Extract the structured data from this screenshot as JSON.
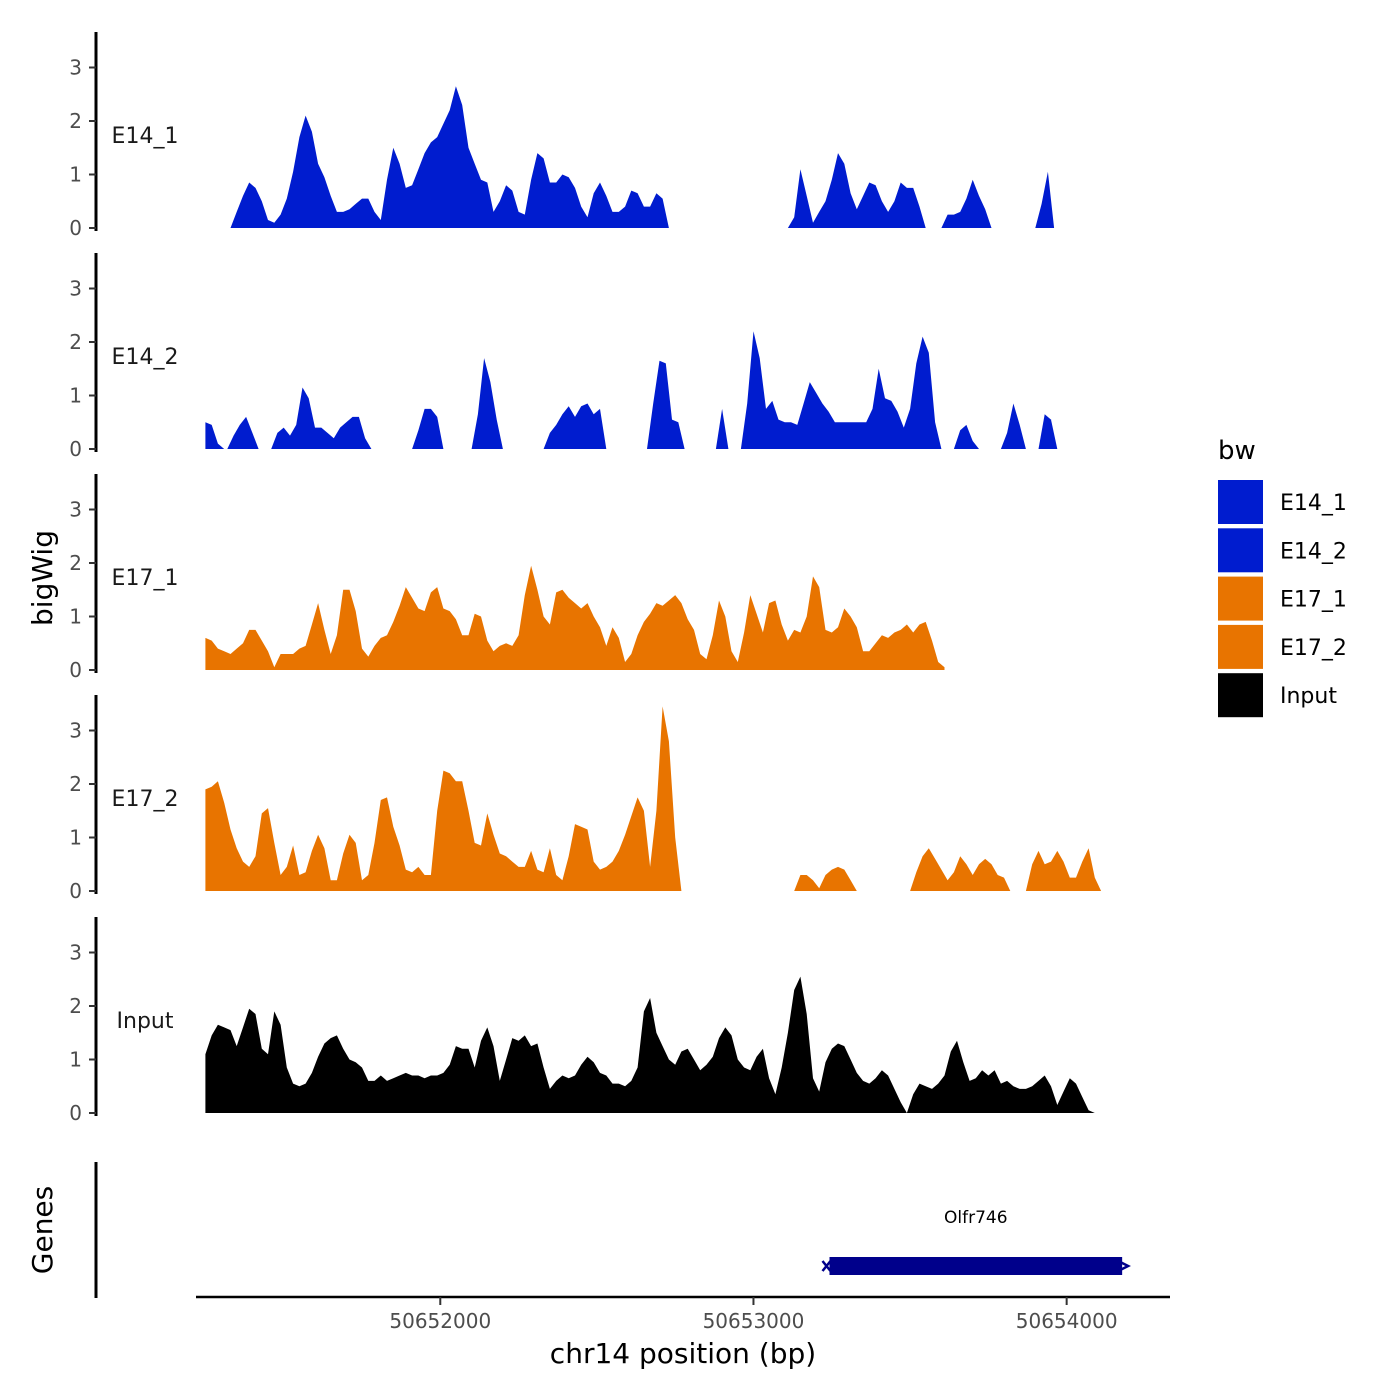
{
  "chart_data": {
    "type": "area",
    "title": "",
    "xlabel": "chr14 position (bp)",
    "ylabel": "bigWig",
    "genes_label": "Genes",
    "xlim": [
      50651220,
      50654330
    ],
    "ylim": [
      0,
      3.6
    ],
    "x_ticks": [
      50652000,
      50653000,
      50654000
    ],
    "x_tick_labels": [
      "50652000",
      "50653000",
      "50654000"
    ],
    "y_ticks": [
      0,
      1,
      2,
      3
    ],
    "y_tick_labels": [
      "0",
      "1",
      "2",
      "3"
    ],
    "x_start": 50651250,
    "x_step": 20,
    "legend": {
      "title": "bw",
      "entries": [
        {
          "label": "E14_1",
          "color": "#001ccf"
        },
        {
          "label": "E14_2",
          "color": "#001ccf"
        },
        {
          "label": "E17_1",
          "color": "#e87400"
        },
        {
          "label": "E17_2",
          "color": "#e87400"
        },
        {
          "label": "Input",
          "color": "#000000"
        }
      ]
    },
    "series": [
      {
        "name": "E14_1",
        "color": "#001ccf",
        "segments": [
          {
            "start": 50651250,
            "values": [
              0.05
            ]
          },
          {
            "start": 50651330,
            "values": [
              0.0,
              0.3,
              0.6,
              0.85,
              0.75,
              0.5,
              0.15,
              0.1,
              0.25,
              0.55,
              1.05,
              1.7,
              2.1,
              1.8,
              1.2,
              0.95,
              0.6,
              0.3,
              0.3,
              0.35,
              0.45,
              0.55,
              0.55,
              0.3,
              0.15,
              0.9,
              1.5,
              1.2,
              0.75,
              0.8,
              1.1,
              1.4,
              1.6,
              1.7,
              1.95,
              2.2,
              2.65,
              2.3,
              1.5,
              1.2,
              0.9,
              0.85,
              0.3,
              0.5,
              0.8,
              0.7,
              0.3,
              0.25,
              0.9,
              1.4,
              1.3,
              0.85,
              0.85,
              1.0,
              0.95,
              0.75,
              0.4,
              0.2,
              0.65,
              0.85,
              0.6,
              0.3,
              0.3,
              0.4,
              0.7,
              0.65,
              0.4,
              0.4,
              0.65,
              0.55,
              0.0
            ]
          },
          {
            "start": 50653110,
            "values": [
              0.0,
              0.2,
              1.1,
              0.6,
              0.1,
              0.3,
              0.5,
              0.9,
              1.4,
              1.2,
              0.65,
              0.35,
              0.6,
              0.85,
              0.8,
              0.5,
              0.3,
              0.5,
              0.85,
              0.75,
              0.75,
              0.4,
              0.0
            ]
          },
          {
            "start": 50653600,
            "values": [
              0.0,
              0.25,
              0.25,
              0.3,
              0.55,
              0.9,
              0.6,
              0.35,
              0.0
            ]
          },
          {
            "start": 50653900,
            "values": [
              0.0,
              0.45,
              1.05,
              0.0
            ]
          }
        ]
      },
      {
        "name": "E14_2",
        "color": "#001ccf",
        "segments": [
          {
            "start": 50651250,
            "values": [
              0.5,
              0.45,
              0.1,
              0.0
            ]
          },
          {
            "start": 50651320,
            "values": [
              0.0,
              0.25,
              0.45,
              0.6,
              0.3,
              0.0
            ]
          },
          {
            "start": 50651460,
            "values": [
              0.0,
              0.3,
              0.4,
              0.25,
              0.45,
              1.15,
              0.95,
              0.4,
              0.4,
              0.3,
              0.2,
              0.4,
              0.5,
              0.6,
              0.6,
              0.2,
              0.0
            ]
          },
          {
            "start": 50651910,
            "values": [
              0.0,
              0.35,
              0.75,
              0.75,
              0.6,
              0.0
            ]
          },
          {
            "start": 50652100,
            "values": [
              0.0,
              0.65,
              1.7,
              1.25,
              0.55,
              0.0
            ]
          },
          {
            "start": 50652330,
            "values": [
              0.0,
              0.3,
              0.45,
              0.65,
              0.8,
              0.6,
              0.8,
              0.85,
              0.65,
              0.75,
              0.0
            ]
          },
          {
            "start": 50652660,
            "values": [
              0.0,
              0.85,
              1.65,
              1.6,
              0.55,
              0.5,
              0.0
            ]
          },
          {
            "start": 50652880,
            "values": [
              0.0,
              0.75,
              0.0
            ]
          },
          {
            "start": 50652960,
            "values": [
              0.0,
              0.85,
              2.2,
              1.7,
              0.75,
              0.9,
              0.55,
              0.5,
              0.5,
              0.45,
              0.85,
              1.25,
              1.05,
              0.85,
              0.7,
              0.5,
              0.5,
              0.5,
              0.5,
              0.5,
              0.5,
              0.75,
              1.5,
              0.95,
              0.9,
              0.7,
              0.4,
              0.75,
              1.6,
              2.1,
              1.8,
              0.5,
              0.0
            ]
          },
          {
            "start": 50653640,
            "values": [
              0.0,
              0.35,
              0.45,
              0.15,
              0.0
            ]
          },
          {
            "start": 50653790,
            "values": [
              0.0,
              0.3,
              0.85,
              0.45,
              0.0
            ]
          },
          {
            "start": 50653910,
            "values": [
              0.0,
              0.65,
              0.55,
              0.0
            ]
          }
        ]
      },
      {
        "name": "E17_1",
        "color": "#e87400",
        "segments": [
          {
            "start": 50651250,
            "values": [
              0.6,
              0.55,
              0.4,
              0.35,
              0.3,
              0.4,
              0.5,
              0.75,
              0.75,
              0.55,
              0.35,
              0.05,
              0.3,
              0.3,
              0.3,
              0.4,
              0.45,
              0.85,
              1.25,
              0.75,
              0.3,
              0.65,
              1.5,
              1.5,
              1.1,
              0.4,
              0.25,
              0.45,
              0.6,
              0.65,
              0.9,
              1.2,
              1.55,
              1.35,
              1.15,
              1.1,
              1.45,
              1.55,
              1.15,
              1.1,
              0.95,
              0.65,
              0.65,
              1.05,
              1.0,
              0.55,
              0.35,
              0.45,
              0.5,
              0.45,
              0.65,
              1.4,
              1.95,
              1.5,
              1.0,
              0.85,
              1.45,
              1.5,
              1.35,
              1.25,
              1.15,
              1.25,
              1.0,
              0.8,
              0.45,
              0.8,
              0.6,
              0.15,
              0.3,
              0.65,
              0.9,
              1.05,
              1.25,
              1.2,
              1.3,
              1.4,
              1.25,
              0.95,
              0.75,
              0.3,
              0.2,
              0.65,
              1.3,
              1.0,
              0.35,
              0.15,
              0.7,
              1.4,
              1.05,
              0.7,
              1.25,
              1.3,
              0.85,
              0.55,
              0.75,
              0.7,
              1.0,
              1.75,
              1.55,
              0.75,
              0.7,
              0.8,
              1.15,
              1.0,
              0.8,
              0.35,
              0.35,
              0.5,
              0.65,
              0.6,
              0.7,
              0.75,
              0.85,
              0.7,
              0.85,
              0.9,
              0.55,
              0.15,
              0.05
            ]
          }
        ]
      },
      {
        "name": "E17_2",
        "color": "#e87400",
        "segments": [
          {
            "start": 50651250,
            "values": [
              1.9,
              1.95,
              2.05,
              1.65,
              1.15,
              0.8,
              0.55,
              0.45,
              0.65,
              1.45,
              1.55,
              0.9,
              0.3,
              0.45,
              0.85,
              0.3,
              0.35,
              0.75,
              1.05,
              0.8,
              0.2,
              0.2,
              0.7,
              1.05,
              0.9,
              0.2,
              0.3,
              0.9,
              1.7,
              1.75,
              1.2,
              0.85,
              0.4,
              0.35,
              0.45,
              0.3,
              0.3,
              1.5,
              2.25,
              2.2,
              2.05,
              2.05,
              1.5,
              0.9,
              0.85,
              1.45,
              1.05,
              0.7,
              0.65,
              0.55,
              0.45,
              0.45,
              0.75,
              0.4,
              0.35,
              0.8,
              0.3,
              0.2,
              0.65,
              1.25,
              1.2,
              1.15,
              0.55,
              0.4,
              0.45,
              0.55,
              0.75,
              1.05,
              1.4,
              1.75,
              1.5,
              0.45,
              1.5,
              3.45,
              2.8,
              1.0,
              0.0
            ]
          },
          {
            "start": 50653130,
            "values": [
              0.0,
              0.3,
              0.3,
              0.2,
              0.05,
              0.3,
              0.4,
              0.45,
              0.4,
              0.2,
              0.0
            ]
          },
          {
            "start": 50653500,
            "values": [
              0.0,
              0.35,
              0.65,
              0.8,
              0.6,
              0.4,
              0.2,
              0.35,
              0.65,
              0.5,
              0.3,
              0.5,
              0.6,
              0.5,
              0.3,
              0.25,
              0.0
            ]
          },
          {
            "start": 50653870,
            "values": [
              0.0,
              0.5,
              0.75,
              0.5,
              0.55,
              0.75,
              0.55,
              0.25,
              0.25,
              0.55,
              0.8,
              0.25,
              0.0
            ]
          }
        ]
      },
      {
        "name": "Input",
        "color": "#000000",
        "segments": [
          {
            "start": 50651250,
            "values": [
              1.1,
              1.45,
              1.65,
              1.6,
              1.55,
              1.25,
              1.6,
              1.95,
              1.85,
              1.2,
              1.1,
              1.9,
              1.65,
              0.85,
              0.55,
              0.5,
              0.55,
              0.75,
              1.05,
              1.3,
              1.4,
              1.45,
              1.2,
              1.0,
              0.95,
              0.85,
              0.6,
              0.6,
              0.7,
              0.6,
              0.65,
              0.7,
              0.75,
              0.7,
              0.7,
              0.65,
              0.7,
              0.7,
              0.75,
              0.9,
              1.25,
              1.2,
              1.2,
              0.85,
              1.35,
              1.6,
              1.25,
              0.6,
              1.0,
              1.4,
              1.35,
              1.45,
              1.25,
              1.3,
              0.85,
              0.45,
              0.6,
              0.7,
              0.65,
              0.7,
              0.9,
              1.05,
              0.95,
              0.75,
              0.7,
              0.55,
              0.55,
              0.5,
              0.6,
              0.85,
              1.9,
              2.15,
              1.5,
              1.25,
              1.0,
              0.9,
              1.15,
              1.2,
              1.0,
              0.8,
              0.9,
              1.05,
              1.4,
              1.6,
              1.45,
              1.0,
              0.85,
              0.8,
              1.05,
              1.2,
              0.65,
              0.35,
              0.85,
              1.5,
              2.3,
              2.55,
              1.85,
              0.65,
              0.4,
              0.95,
              1.2,
              1.3,
              1.25,
              1.0,
              0.75,
              0.6,
              0.55,
              0.65,
              0.8,
              0.7,
              0.45,
              0.2,
              0.0,
              0.35,
              0.55,
              0.5,
              0.45,
              0.55,
              0.7,
              1.15,
              1.35,
              0.95,
              0.6,
              0.65,
              0.8,
              0.7,
              0.8,
              0.55,
              0.6,
              0.5,
              0.45,
              0.45,
              0.5,
              0.6,
              0.7,
              0.5,
              0.15,
              0.4,
              0.65,
              0.55,
              0.3,
              0.05,
              0.0
            ]
          }
        ]
      }
    ],
    "genes": [
      {
        "name": "Olfr746",
        "start": 50653230,
        "end": 50654190,
        "strand": "-",
        "color": "#00008b"
      }
    ]
  }
}
